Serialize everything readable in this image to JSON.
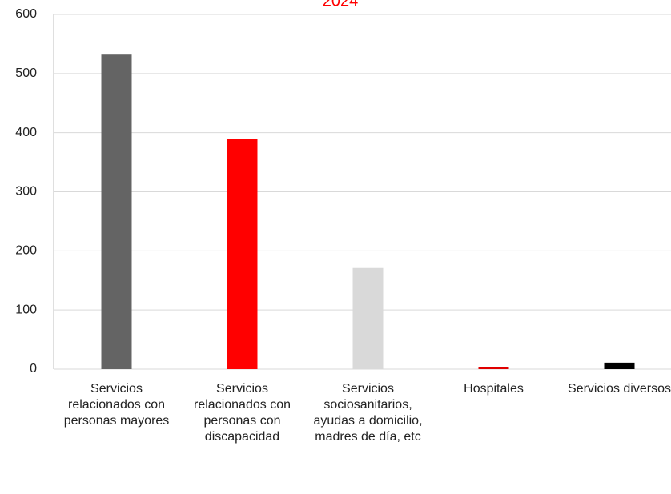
{
  "chart_data": {
    "type": "bar",
    "title": "2024",
    "categories": [
      "Servicios relacionados con personas mayores",
      "Servicios relacionados con personas con discapacidad",
      "Servicios sociosanitarios, ayudas a domicilio, madres de día, etc",
      "Hospitales",
      "Servicios diversos"
    ],
    "values": [
      532,
      390,
      171,
      4,
      11
    ],
    "colors": [
      "#646464",
      "#ff0000",
      "#d9d9d9",
      "#e00000",
      "#000000"
    ],
    "ylim": [
      0,
      600
    ],
    "yticks": [
      0,
      100,
      200,
      300,
      400,
      500,
      600
    ],
    "grid": true
  }
}
